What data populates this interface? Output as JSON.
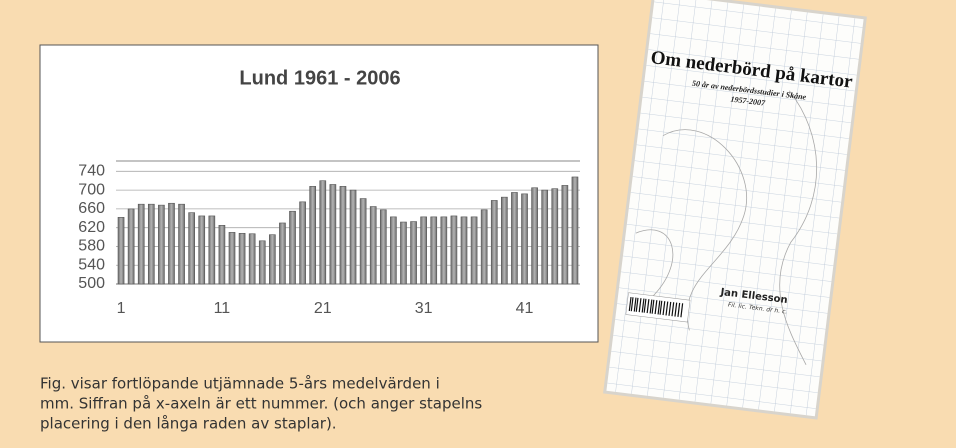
{
  "chart_data": {
    "type": "bar",
    "title": "Lund 1961 - 2006",
    "categories": [
      "1",
      null,
      null,
      null,
      null,
      null,
      null,
      null,
      null,
      null,
      "11",
      null,
      null,
      null,
      null,
      null,
      null,
      null,
      null,
      null,
      "21",
      null,
      null,
      null,
      null,
      null,
      null,
      null,
      null,
      null,
      "31",
      null,
      null,
      null,
      null,
      null,
      null,
      null,
      null,
      null,
      "41",
      null,
      null,
      null,
      null,
      null
    ],
    "values": [
      642,
      660,
      670,
      670,
      668,
      672,
      670,
      652,
      645,
      645,
      625,
      610,
      608,
      607,
      592,
      605,
      630,
      655,
      675,
      708,
      720,
      712,
      708,
      700,
      682,
      665,
      658,
      643,
      632,
      633,
      643,
      643,
      643,
      645,
      643,
      643,
      658,
      678,
      685,
      695,
      692,
      705,
      700,
      703,
      710,
      728
    ],
    "color": "#8c8c8c",
    "ylim": [
      500,
      762
    ],
    "yticks": [
      500,
      540,
      580,
      620,
      660,
      700,
      740
    ],
    "grid": true
  },
  "caption": [
    "Fig. visar fortlöpande utjämnade 5-års medelvärden i",
    "mm. Siffran på x-axeln är ett nummer. (och anger stapelns",
    "placering i den långa raden av staplar)."
  ],
  "book": {
    "title": "Om nederbörd på kartor",
    "subtitle": "50 år av nederbördsstudier i Skåne",
    "years": "1957-2007",
    "author": "Jan Ellesson",
    "credentials": "Fil. lic. Tekn. dr h. c."
  }
}
